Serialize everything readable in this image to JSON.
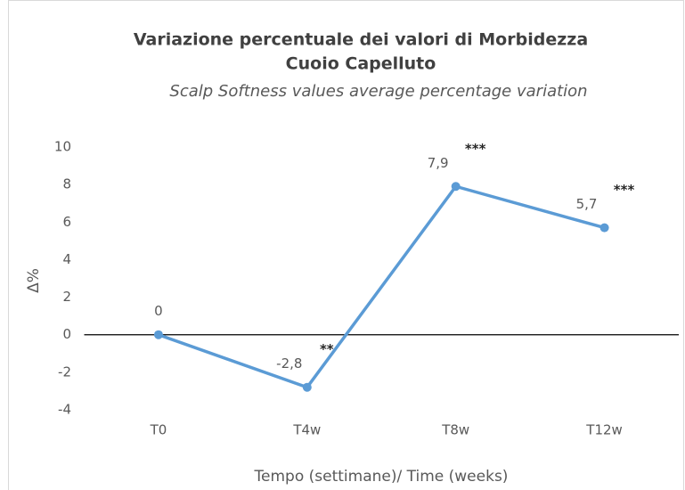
{
  "chart_data": {
    "type": "line",
    "title": [
      "Variazione percentuale dei valori di Morbidezza",
      "Cuoio Capelluto"
    ],
    "subtitle": "Scalp Softness values average percentage variation",
    "x_label": "Tempo (settimane)/ Time (weeks)",
    "y_label": "Δ%",
    "categories": [
      "T0",
      "T4w",
      "T8w",
      "T12w"
    ],
    "series": [
      {
        "name": "Δ%",
        "color": "#5b9bd5",
        "values": [
          0,
          -2.8,
          7.9,
          5.7
        ],
        "value_labels": [
          "0",
          "-2,8",
          "7,9",
          "5,7"
        ]
      }
    ],
    "annotations": [
      {
        "text": "**",
        "category": "T4w"
      },
      {
        "text": "***",
        "category": "T8w"
      },
      {
        "text": "***",
        "category": "T12w"
      }
    ],
    "ylim": [
      -4,
      10
    ],
    "yticks": [
      -4,
      -2,
      0,
      2,
      4,
      6,
      8,
      10
    ],
    "grid": false
  }
}
